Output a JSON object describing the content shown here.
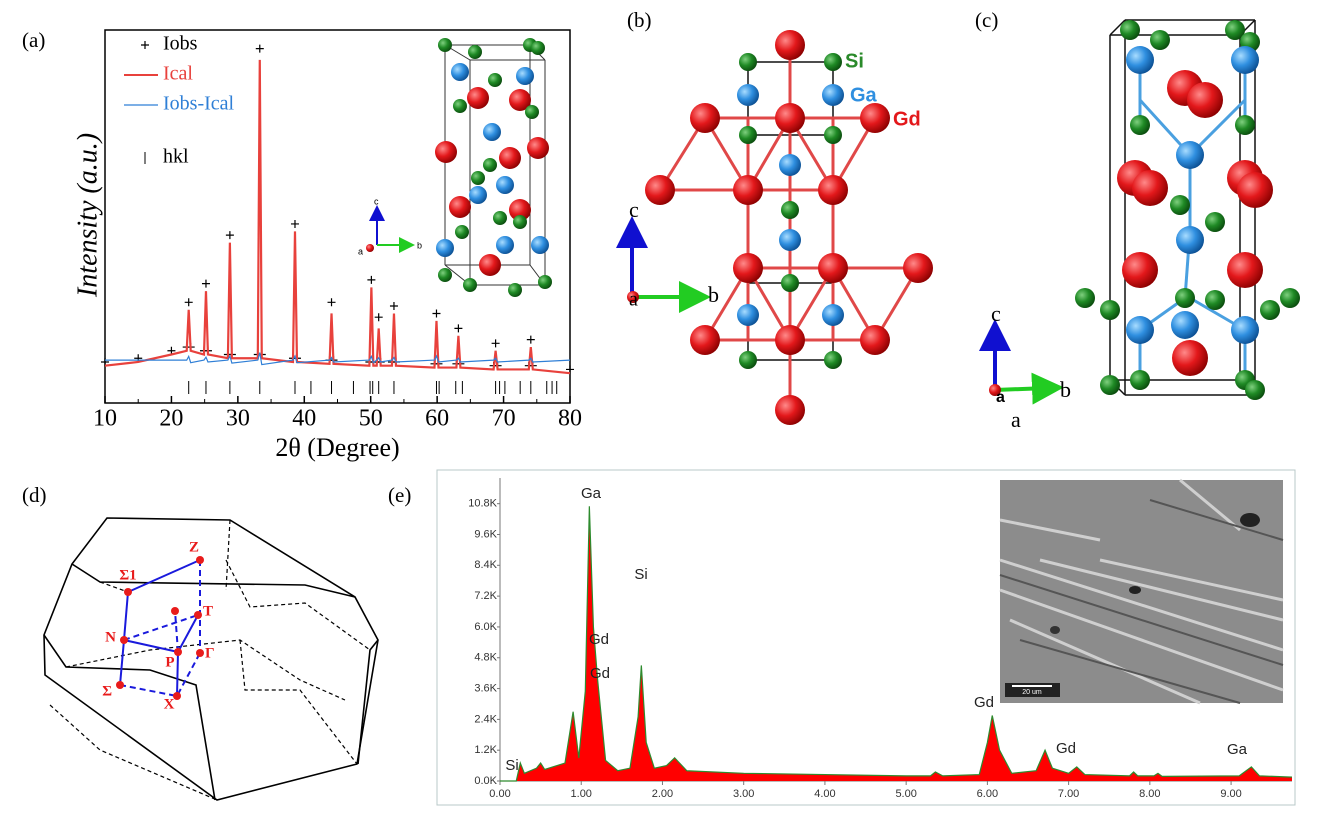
{
  "panel_labels": [
    "(a)",
    "(b)",
    "(c)",
    "(d)",
    "(e)"
  ],
  "chart_data": [
    {
      "type": "line",
      "xlabel": "2θ (Degree)",
      "ylabel": "Intensity (a.u.)",
      "xlim": [
        10,
        80
      ],
      "xticks": [
        10,
        20,
        30,
        40,
        50,
        60,
        70,
        80
      ],
      "ylim": [
        0,
        100
      ],
      "x": [
        10,
        15,
        20,
        22.3,
        22.6,
        22.9,
        24.9,
        25.2,
        25.5,
        28.5,
        28.8,
        29.1,
        33.0,
        33.3,
        33.6,
        38.3,
        38.6,
        38.9,
        43.8,
        44.1,
        44.4,
        49.8,
        50.1,
        50.4,
        50.9,
        51.2,
        51.5,
        53.2,
        53.5,
        53.8,
        59.6,
        59.9,
        60.2,
        62.9,
        63.2,
        63.5,
        68.5,
        68.8,
        69.1,
        73.8,
        74.1,
        74.4,
        80
      ],
      "series": [
        {
          "name": "Iobs",
          "color": "#000000",
          "marker": "+",
          "values": [
            11,
            12,
            14,
            15,
            27,
            15,
            14,
            32,
            14,
            13,
            45,
            13,
            13,
            95,
            13,
            12,
            48,
            12,
            11.5,
            27,
            11.5,
            11,
            33,
            11,
            11,
            23,
            11,
            11,
            26,
            11,
            10.5,
            24,
            10.5,
            10.5,
            20,
            10.5,
            10,
            16,
            10,
            10,
            17,
            10,
            9
          ]
        },
        {
          "name": "Ical",
          "color": "#e8413c",
          "values": [
            10,
            11,
            13,
            14,
            25,
            14,
            13,
            30,
            13,
            12,
            43,
            12,
            12,
            92,
            12,
            11,
            46,
            11,
            10.5,
            24,
            10.5,
            10,
            31,
            10,
            10,
            20,
            10,
            10,
            24,
            10,
            9.5,
            22,
            9.5,
            9.5,
            18,
            9.5,
            9,
            14,
            9,
            9,
            15,
            9,
            8
          ]
        },
        {
          "name": "Iobs-Ical",
          "color": "#2f7fd6",
          "values": [
            11.5,
            11.5,
            11.5,
            11.5,
            12.5,
            10.8,
            11.5,
            12.3,
            11,
            11.5,
            12.6,
            10.7,
            11.5,
            13.5,
            10.3,
            11.5,
            12.6,
            10.8,
            11.5,
            12.2,
            11,
            11.5,
            12.5,
            10.8,
            11.5,
            12.1,
            11,
            11.5,
            12.2,
            11,
            11.5,
            12.6,
            11,
            11.5,
            12,
            11,
            11.5,
            12,
            11,
            11.5,
            12,
            11,
            11.5
          ]
        }
      ],
      "hkl": {
        "name": "hkl",
        "color": "#000000",
        "x": [
          22.6,
          25.2,
          28.8,
          33.3,
          38.6,
          41.0,
          44.1,
          47.4,
          49.9,
          50.3,
          51.2,
          53.5,
          59.9,
          60.3,
          62.8,
          63.8,
          68.8,
          69.4,
          70.2,
          72.5,
          74.1,
          76.5,
          77.3,
          78.0
        ]
      },
      "inset_axes": [
        "c",
        "a",
        "b"
      ]
    },
    {
      "type": "area",
      "xlim": [
        0,
        9.75
      ],
      "xticks": [
        {
          "value": 0,
          "label": "0.00"
        },
        {
          "value": 1,
          "label": "1.00"
        },
        {
          "value": 2,
          "label": "2.00"
        },
        {
          "value": 3,
          "label": "3.00"
        },
        {
          "value": 4,
          "label": "4.00"
        },
        {
          "value": 5,
          "label": "5.00"
        },
        {
          "value": 6,
          "label": "6.00"
        },
        {
          "value": 7,
          "label": "7.00"
        },
        {
          "value": 8,
          "label": "8.00"
        },
        {
          "value": 9,
          "label": "9.00"
        }
      ],
      "ylim": [
        0,
        11800
      ],
      "yticks": [
        {
          "value": 0,
          "label": "0.0K"
        },
        {
          "value": 1200,
          "label": "1.2K"
        },
        {
          "value": 2400,
          "label": "2.4K"
        },
        {
          "value": 3600,
          "label": "3.6K"
        },
        {
          "value": 4800,
          "label": "4.8K"
        },
        {
          "value": 6000,
          "label": "6.0K"
        },
        {
          "value": 7200,
          "label": "7.2K"
        },
        {
          "value": 8400,
          "label": "8.4K"
        },
        {
          "value": 9600,
          "label": "9.6K"
        },
        {
          "value": 10800,
          "label": "10.8K"
        }
      ],
      "x": [
        0,
        0.2,
        0.25,
        0.3,
        0.45,
        0.5,
        0.55,
        0.8,
        0.9,
        0.97,
        1.05,
        1.1,
        1.15,
        1.2,
        1.3,
        1.45,
        1.6,
        1.7,
        1.74,
        1.8,
        1.9,
        2.05,
        2.15,
        2.3,
        3.0,
        4.0,
        5.0,
        5.3,
        5.36,
        5.45,
        5.9,
        6.0,
        6.06,
        6.15,
        6.3,
        6.6,
        6.71,
        6.8,
        7.0,
        7.1,
        7.2,
        7.75,
        7.8,
        7.85,
        8.05,
        8.1,
        8.15,
        9.1,
        9.25,
        9.35,
        9.75
      ],
      "values": [
        0,
        0,
        700,
        300,
        500,
        700,
        450,
        700,
        2700,
        900,
        3500,
        10700,
        6000,
        4000,
        800,
        400,
        500,
        2500,
        4500,
        1500,
        500,
        600,
        900,
        400,
        300,
        250,
        200,
        200,
        350,
        200,
        250,
        1500,
        2550,
        1200,
        300,
        400,
        1200,
        500,
        300,
        550,
        250,
        200,
        350,
        200,
        200,
        300,
        180,
        200,
        550,
        200,
        150
      ],
      "color": "#ff0000",
      "edge_color": "#2e8b2e",
      "annotations": [
        "Si",
        "Ga",
        "Gd",
        "Gd",
        "Si",
        "Gd",
        "Gd",
        "Ga"
      ],
      "inset_scale": "20 um"
    }
  ],
  "structure_b": {
    "labels": [
      "Si",
      "Ga",
      "Gd"
    ],
    "axes": [
      "c",
      "a",
      "b"
    ]
  },
  "structure_c": {
    "axes": [
      "c",
      "a",
      "b",
      "a"
    ]
  },
  "brillouin_zone": {
    "points": [
      "Z",
      "Σ1",
      "T",
      "N",
      "P",
      "Γ",
      "Σ",
      "X"
    ]
  }
}
